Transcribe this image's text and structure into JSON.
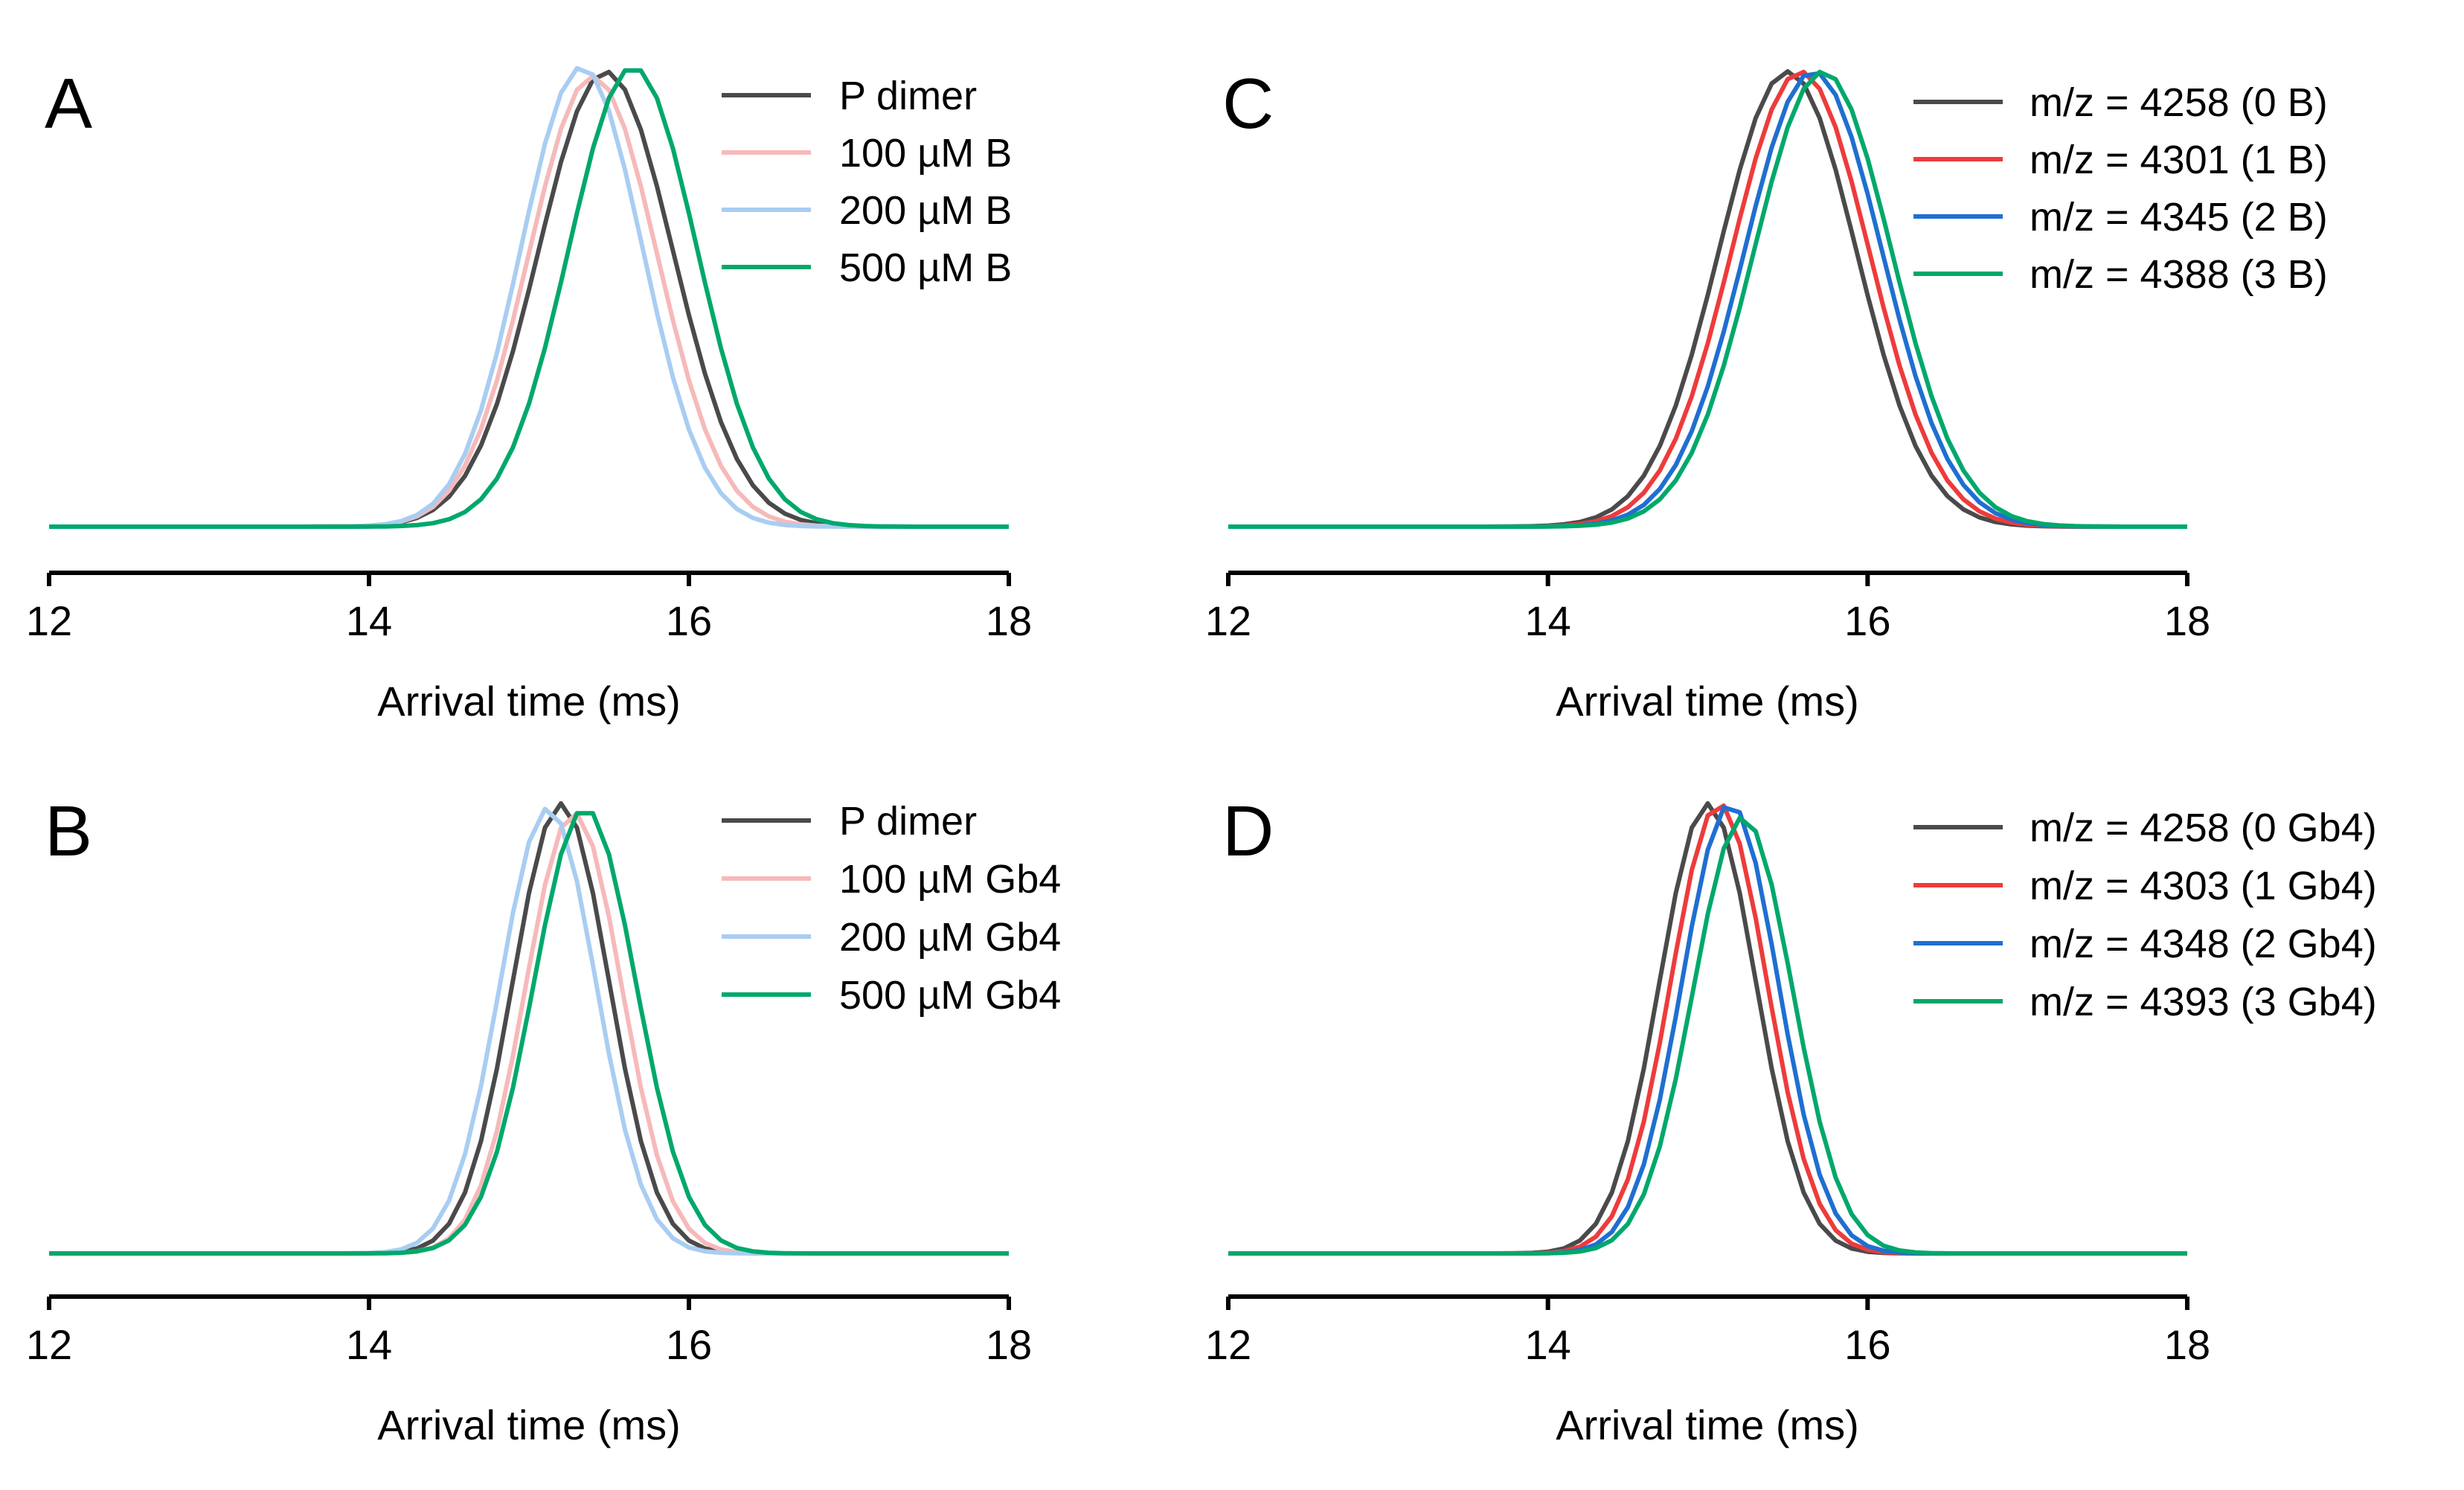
{
  "figure": {
    "background": "#ffffff"
  },
  "chart_data": [
    {
      "panel": "A",
      "type": "line",
      "xlabel": "Arrival time (ms)",
      "ylabel": "",
      "xlim": [
        12,
        18
      ],
      "ylim": [
        0,
        1
      ],
      "xticks": [
        12,
        14,
        16,
        18
      ],
      "xtick_labels": [
        "12",
        "14",
        "16",
        "18"
      ],
      "legend_position": "top-right",
      "series": [
        {
          "name": "P dimer",
          "label": "P dimer",
          "color": "#4a4a4a",
          "center": 15.48,
          "sigma": 0.42,
          "peak": 1.0
        },
        {
          "name": "100 µM B",
          "label": "100 µM B",
          "color": "#f7b9b9",
          "center": 15.4,
          "sigma": 0.4,
          "peak": 0.99
        },
        {
          "name": "200 µM B",
          "label": "200 µM B",
          "color": "#a9cdf2",
          "center": 15.33,
          "sigma": 0.38,
          "peak": 1.01
        },
        {
          "name": "500 µM B",
          "label": "500 µM B",
          "color": "#00a86b",
          "center": 15.65,
          "sigma": 0.4,
          "peak": 1.01
        }
      ]
    },
    {
      "panel": "B",
      "type": "line",
      "xlabel": "Arrival time (ms)",
      "ylabel": "",
      "xlim": [
        12,
        18
      ],
      "ylim": [
        0,
        1
      ],
      "xticks": [
        12,
        14,
        16,
        18
      ],
      "xtick_labels": [
        "12",
        "14",
        "16",
        "18"
      ],
      "legend_position": "top-right",
      "series": [
        {
          "name": "P dimer",
          "label": "P dimer",
          "color": "#4a4a4a",
          "center": 15.2,
          "sigma": 0.3,
          "peak": 1.0
        },
        {
          "name": "100 µM Gb4",
          "label": "100 µM Gb4",
          "color": "#f7b9b9",
          "center": 15.28,
          "sigma": 0.3,
          "peak": 0.98
        },
        {
          "name": "200 µM Gb4",
          "label": "200 µM Gb4",
          "color": "#a9cdf2",
          "center": 15.12,
          "sigma": 0.3,
          "peak": 0.99
        },
        {
          "name": "500 µM Gb4",
          "label": "500 µM Gb4",
          "color": "#00a86b",
          "center": 15.35,
          "sigma": 0.32,
          "peak": 0.99
        }
      ]
    },
    {
      "panel": "C",
      "type": "line",
      "xlabel": "Arrival time (ms)",
      "ylabel": "",
      "xlim": [
        12,
        18
      ],
      "ylim": [
        0,
        1
      ],
      "xticks": [
        12,
        14,
        16,
        18
      ],
      "xtick_labels": [
        "12",
        "14",
        "16",
        "18"
      ],
      "legend_position": "top-right",
      "series": [
        {
          "name": "m/z = 4258 (0 B)",
          "label": "m/z = 4258 (0 B)",
          "color": "#4a4a4a",
          "center": 15.5,
          "sigma": 0.43,
          "peak": 1.0
        },
        {
          "name": "m/z = 4301 (1 B)",
          "label": "m/z = 4301 (1 B)",
          "color": "#ee3b3b",
          "center": 15.58,
          "sigma": 0.43,
          "peak": 1.0
        },
        {
          "name": "m/z = 4345 (2 B)",
          "label": "m/z = 4345 (2 B)",
          "color": "#1f6fd1",
          "center": 15.66,
          "sigma": 0.43,
          "peak": 1.0
        },
        {
          "name": "m/z = 4388 (3 B)",
          "label": "m/z = 4388 (3 B)",
          "color": "#00a86b",
          "center": 15.72,
          "sigma": 0.43,
          "peak": 1.0
        }
      ]
    },
    {
      "panel": "D",
      "type": "line",
      "xlabel": "Arrival time (ms)",
      "ylabel": "",
      "xlim": [
        12,
        18
      ],
      "ylim": [
        0,
        1
      ],
      "xticks": [
        12,
        14,
        16,
        18
      ],
      "xtick_labels": [
        "12",
        "14",
        "16",
        "18"
      ],
      "legend_position": "top-right",
      "series": [
        {
          "name": "m/z = 4258 (0 Gb4)",
          "label": "m/z = 4258 (0 Gb4)",
          "color": "#4a4a4a",
          "center": 15.0,
          "sigma": 0.3,
          "peak": 1.0
        },
        {
          "name": "m/z = 4303 (1 Gb4)",
          "label": "m/z = 4303 (1 Gb4)",
          "color": "#ee3b3b",
          "center": 15.07,
          "sigma": 0.3,
          "peak": 1.0
        },
        {
          "name": "m/z = 4348 (2 Gb4)",
          "label": "m/z = 4348 (2 Gb4)",
          "color": "#1f6fd1",
          "center": 15.14,
          "sigma": 0.3,
          "peak": 1.0
        },
        {
          "name": "m/z = 4393 (3 Gb4)",
          "label": "m/z = 4393 (3 Gb4)",
          "color": "#00a86b",
          "center": 15.22,
          "sigma": 0.31,
          "peak": 0.97
        }
      ]
    }
  ]
}
